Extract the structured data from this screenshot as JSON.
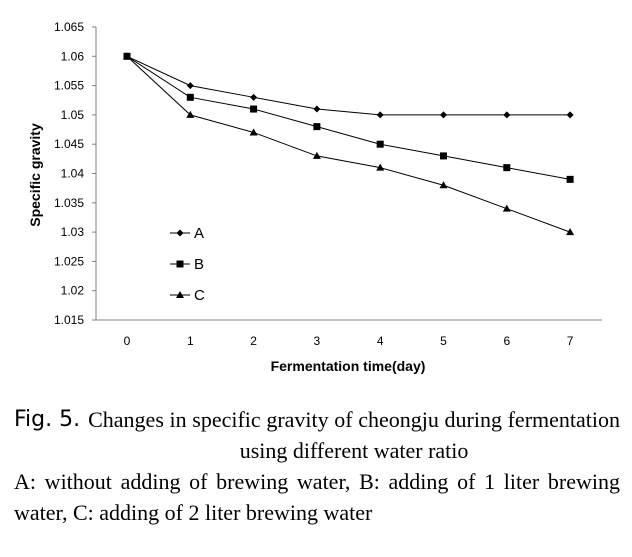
{
  "chart_data": {
    "type": "line",
    "x": [
      0,
      1,
      2,
      3,
      4,
      5,
      6,
      7
    ],
    "series": [
      {
        "name": "A",
        "marker": "diamond",
        "values": [
          1.06,
          1.055,
          1.053,
          1.051,
          1.05,
          1.05,
          1.05,
          1.05
        ]
      },
      {
        "name": "B",
        "marker": "square",
        "values": [
          1.06,
          1.053,
          1.051,
          1.048,
          1.045,
          1.043,
          1.041,
          1.039
        ]
      },
      {
        "name": "C",
        "marker": "triangle",
        "values": [
          1.06,
          1.05,
          1.047,
          1.043,
          1.041,
          1.038,
          1.034,
          1.03
        ]
      }
    ],
    "xlabel": "Fermentation time(day)",
    "ylabel": "Specific gravity",
    "xticks": [
      "0",
      "1",
      "2",
      "3",
      "4",
      "5",
      "6",
      "7"
    ],
    "yticks": [
      "1.015",
      "1.02",
      "1.025",
      "1.03",
      "1.035",
      "1.04",
      "1.045",
      "1.05",
      "1.055",
      "1.06",
      "1.065"
    ],
    "ylim": [
      1.015,
      1.065
    ],
    "grid": false,
    "legend_position": "lower-left"
  },
  "caption": {
    "fig_label": "Fig. 5.",
    "title": "Changes in specific gravity of cheongju during fermentation using different water ratio",
    "note": "A: without adding of brewing water, B: adding of 1 liter brewing water, C: adding of 2 liter brewing water"
  },
  "colors": {
    "series": "#000000",
    "axis": "#808080"
  }
}
